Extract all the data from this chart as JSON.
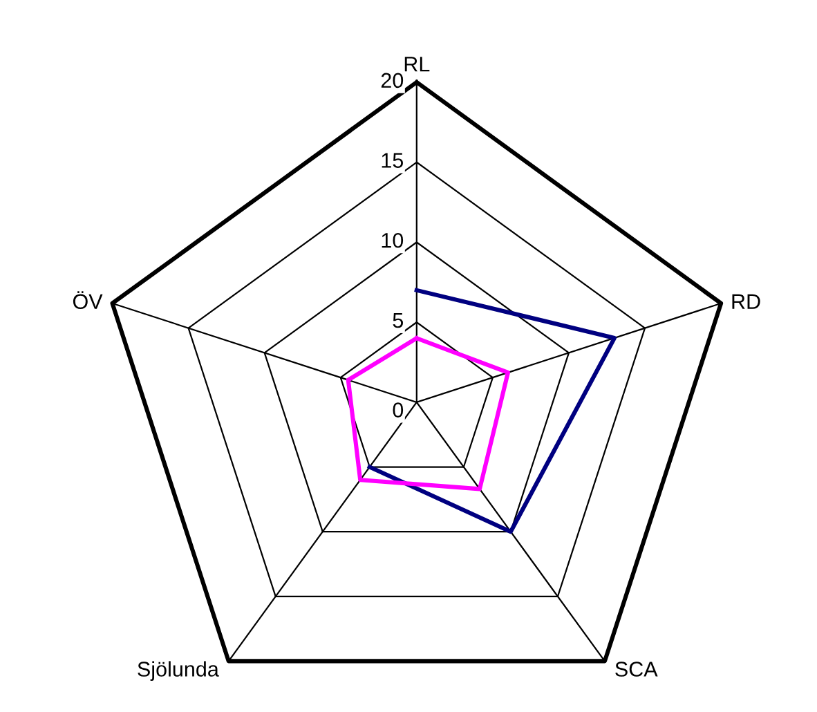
{
  "chart_data": {
    "type": "radar",
    "categories": [
      "RL",
      "RD",
      "SCA",
      "Sjölunda",
      "ÖV"
    ],
    "ylim": [
      0,
      20
    ],
    "yticks": [
      0,
      5,
      10,
      15,
      20
    ],
    "grid": true,
    "series": [
      {
        "color": "#000080",
        "values": [
          7,
          13,
          10,
          5,
          null
        ]
      },
      {
        "color": "#ff00ff",
        "values": [
          4,
          6,
          6.7,
          6,
          4.5
        ]
      }
    ]
  }
}
